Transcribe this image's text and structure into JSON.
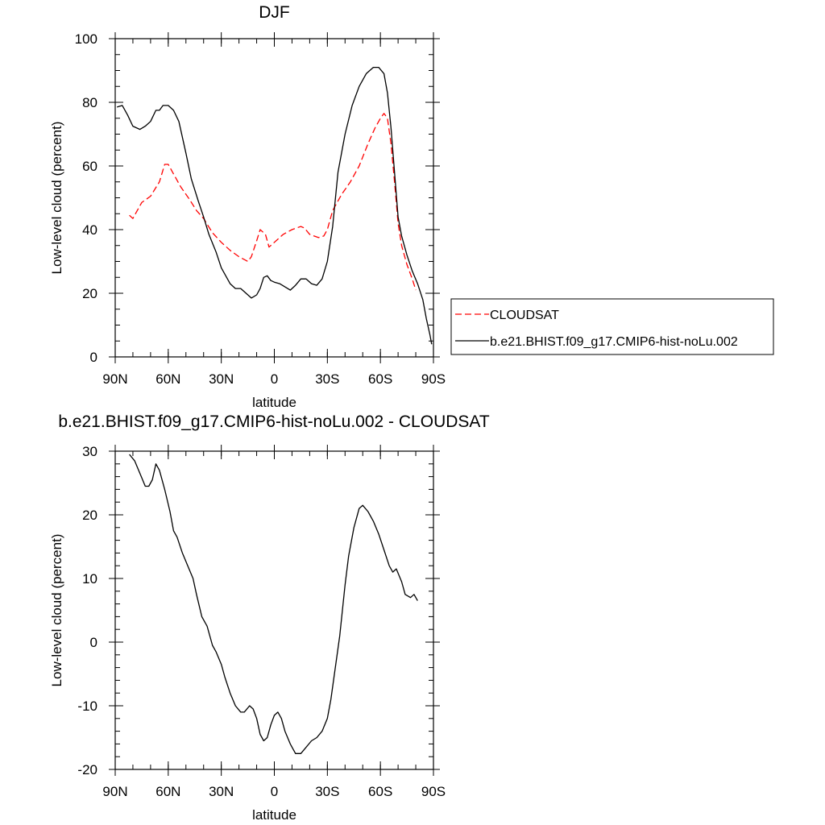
{
  "chart_data": [
    {
      "type": "line",
      "title": "DJF",
      "xlabel": "latitude",
      "ylabel": "Low-level cloud (percent)",
      "xlim": [
        -90,
        90
      ],
      "ylim": [
        0,
        100
      ],
      "x_ticks": [
        {
          "value": -90,
          "label": "90N"
        },
        {
          "value": -60,
          "label": "60N"
        },
        {
          "value": -30,
          "label": "30N"
        },
        {
          "value": 0,
          "label": "0"
        },
        {
          "value": 30,
          "label": "30S"
        },
        {
          "value": 60,
          "label": "60S"
        },
        {
          "value": 90,
          "label": "90S"
        }
      ],
      "y_ticks": [
        {
          "value": 0,
          "label": "0"
        },
        {
          "value": 20,
          "label": "20"
        },
        {
          "value": 40,
          "label": "40"
        },
        {
          "value": 60,
          "label": "60"
        },
        {
          "value": 80,
          "label": "80"
        },
        {
          "value": 100,
          "label": "100"
        }
      ],
      "legend_position": "right",
      "series": [
        {
          "name": "CLOUDSAT",
          "color": "#ff0000",
          "style": "dashed",
          "x": [
            -82,
            -80,
            -75,
            -70,
            -65,
            -62,
            -60,
            -57,
            -53,
            -48,
            -44,
            -40,
            -35,
            -30,
            -25,
            -20,
            -15,
            -13,
            -10,
            -8,
            -5,
            -3,
            0,
            5,
            10,
            15,
            17,
            20,
            25,
            28,
            30,
            33,
            38,
            43,
            48,
            53,
            57,
            60,
            62,
            64,
            66,
            68,
            70,
            72,
            75,
            78,
            80
          ],
          "y": [
            44.5,
            43.5,
            48.5,
            50.5,
            55,
            60.5,
            60.5,
            57.5,
            53.5,
            49.5,
            46,
            43.5,
            39,
            36,
            33.5,
            31.5,
            30,
            31.5,
            36.5,
            40,
            38.5,
            34.5,
            36,
            38.5,
            40,
            41,
            40.5,
            38.5,
            37.5,
            38,
            40,
            46,
            51,
            55,
            60,
            67,
            72,
            75,
            76.5,
            75,
            67,
            55,
            42,
            35,
            29,
            24.5,
            21
          ]
        },
        {
          "name": "b.e21.BHIST.f09_g17.CMIP6-hist-noLu.002",
          "color": "#000000",
          "style": "solid",
          "x": [
            -89,
            -86,
            -83,
            -80,
            -76,
            -73,
            -70,
            -67,
            -65,
            -63,
            -60,
            -57,
            -54,
            -50,
            -47,
            -43,
            -40,
            -37,
            -33,
            -30,
            -25,
            -22,
            -19,
            -16,
            -13,
            -10,
            -8,
            -6,
            -4,
            -2,
            0,
            3,
            6,
            9,
            12,
            15,
            18,
            21,
            24,
            27,
            30,
            33,
            36,
            40,
            44,
            48,
            52,
            56,
            59,
            62,
            64,
            66,
            68,
            70,
            72,
            75,
            78,
            81,
            84,
            86,
            88,
            89
          ],
          "y": [
            78.5,
            79,
            76,
            72.5,
            71.5,
            72.5,
            74,
            77.5,
            77.5,
            79,
            79,
            77.5,
            74,
            64,
            56,
            49,
            44,
            38.5,
            33,
            28,
            23,
            21.5,
            21.5,
            20,
            18.5,
            19.5,
            21.5,
            25,
            25.5,
            24,
            23.5,
            23,
            22,
            21,
            22.5,
            24.5,
            24.5,
            23,
            22.5,
            24.5,
            30,
            41,
            58,
            70,
            79,
            85,
            89,
            91,
            91,
            89,
            83,
            72,
            58,
            44,
            38,
            32,
            27,
            23,
            18,
            12,
            7,
            4
          ]
        }
      ]
    },
    {
      "type": "line",
      "title": "b.e21.BHIST.f09_g17.CMIP6-hist-noLu.002 - CLOUDSAT",
      "xlabel": "latitude",
      "ylabel": "Low-level cloud (percent)",
      "xlim": [
        -90,
        90
      ],
      "ylim": [
        -20,
        30
      ],
      "x_ticks": [
        {
          "value": -90,
          "label": "90N"
        },
        {
          "value": -60,
          "label": "60N"
        },
        {
          "value": -30,
          "label": "30N"
        },
        {
          "value": 0,
          "label": "0"
        },
        {
          "value": 30,
          "label": "30S"
        },
        {
          "value": 60,
          "label": "60S"
        },
        {
          "value": 90,
          "label": "90S"
        }
      ],
      "y_ticks": [
        {
          "value": -20,
          "label": "-20"
        },
        {
          "value": -10,
          "label": "-10"
        },
        {
          "value": 0,
          "label": "0"
        },
        {
          "value": 10,
          "label": "10"
        },
        {
          "value": 20,
          "label": "20"
        },
        {
          "value": 30,
          "label": "30"
        }
      ],
      "series": [
        {
          "name": "b.e21.BHIST.f09_g17.CMIP6-hist-noLu.002 - CLOUDSAT",
          "color": "#000000",
          "style": "solid",
          "x": [
            -82,
            -79,
            -76,
            -73,
            -71,
            -69,
            -67,
            -65,
            -62,
            -59,
            -57,
            -55,
            -52,
            -49,
            -46,
            -44,
            -41,
            -38,
            -35,
            -33,
            -30,
            -28,
            -25,
            -22,
            -19,
            -17,
            -14,
            -12,
            -10,
            -8,
            -6,
            -4,
            -2,
            0,
            2,
            4,
            6,
            9,
            12,
            15,
            18,
            21,
            24,
            27,
            30,
            32,
            34,
            37,
            40,
            42,
            45,
            48,
            50,
            53,
            56,
            59,
            62,
            65,
            67,
            69,
            72,
            74,
            77,
            79,
            81
          ],
          "y": [
            29.5,
            28.5,
            26.5,
            24.5,
            24.5,
            25.5,
            28,
            27,
            24,
            20.5,
            17.5,
            16.5,
            14,
            12,
            10,
            7.5,
            4,
            2.5,
            -0.5,
            -1.5,
            -3.5,
            -5.5,
            -8,
            -10,
            -11,
            -11,
            -10,
            -10.5,
            -12,
            -14.5,
            -15.5,
            -15,
            -13,
            -11.5,
            -11,
            -12,
            -14,
            -16,
            -17.5,
            -17.5,
            -16.5,
            -15.5,
            -15,
            -14,
            -12,
            -9,
            -5,
            1,
            9,
            13.5,
            18,
            21,
            21.5,
            20.5,
            19,
            17,
            14.5,
            12,
            11,
            11.5,
            9.5,
            7.5,
            7,
            7.5,
            6.5
          ]
        }
      ]
    }
  ]
}
